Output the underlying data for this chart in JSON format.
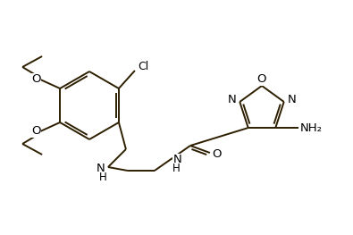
{
  "bg_color": "#ffffff",
  "bond_color": "#2d1f00",
  "lw": 1.4,
  "figsize": [
    3.95,
    2.63
  ],
  "dpi": 100,
  "xlim": [
    0,
    395
  ],
  "ylim": [
    0,
    263
  ]
}
